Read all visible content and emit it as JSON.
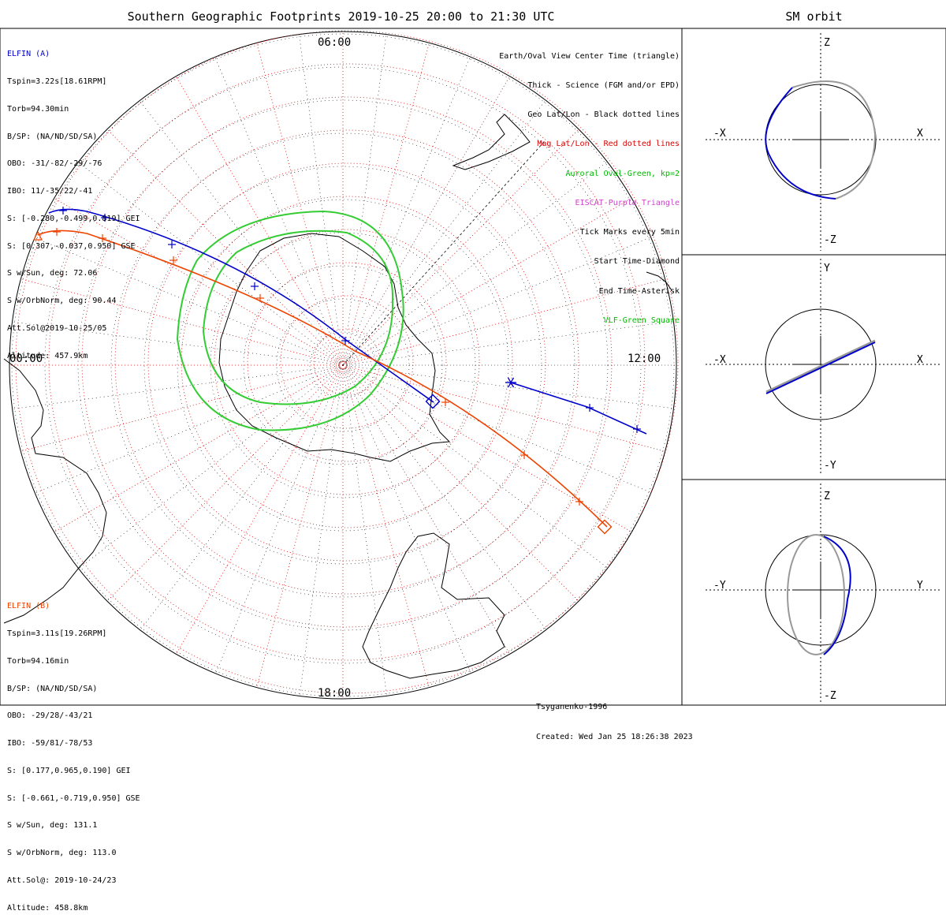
{
  "title": "Southern Geographic Footprints 2019-10-25 20:00 to 21:30 UTC",
  "side_title": "SM orbit",
  "elfin_a": {
    "header": "ELFIN (A)",
    "lines": [
      "Tspin=3.22s[18.61RPM]",
      "Torb=94.30min",
      "B/SP: (NA/ND/SD/SA)",
      "OBO: -31/-82/-29/-76",
      "IBO: 11/-35/22/-41",
      "S: [-0.280,-0.499,0.819] GEI",
      "S: [0.307,-0.037,0.950] GSE",
      "S w/Sun, deg: 72.06",
      "S w/OrbNorm, deg: 90.44",
      "Att.Sol@2019-10-25/05",
      "Altitude: 457.9km"
    ],
    "color": "#0000cc"
  },
  "elfin_b": {
    "header": "ELFIN (B)",
    "lines": [
      "Tspin=3.11s[19.26RPM]",
      "Torb=94.16min",
      "B/SP: (NA/ND/SD/SA)",
      "OBO: -29/28/-43/21",
      "IBO: -59/81/-78/53",
      "S: [0.177,0.965,0.190] GEI",
      "S: [-0.661,-0.719,0.950] GSE",
      "S w/Sun, deg: 131.1",
      "S w/OrbNorm, deg: 113.0",
      "Att.Sol@: 2019-10-24/23",
      "Altitude: 458.8km"
    ],
    "color": "#ee4400"
  },
  "legend": [
    {
      "text": "Earth/Oval View Center Time (triangle)",
      "color": "#000000"
    },
    {
      "text": "Thick - Science (FGM and/or EPD)",
      "color": "#000000"
    },
    {
      "text": "Geo Lat/Lon - Black dotted lines",
      "color": "#000000"
    },
    {
      "text": "Mag Lat/Lon - Red dotted lines",
      "color": "#dd0000"
    },
    {
      "text": "Auroral Oval-Green, kp=2",
      "color": "#00bb00"
    },
    {
      "text": "EISCAT-Purple Triangle",
      "color": "#cc44cc"
    },
    {
      "text": "Tick Marks every 5min",
      "color": "#000000"
    },
    {
      "text": "Start Time-Diamond",
      "color": "#000000"
    },
    {
      "text": "End Time-Asterisk",
      "color": "#000000"
    },
    {
      "text": "VLF-Green Square",
      "color": "#00bb00"
    }
  ],
  "map_labels": {
    "top": "06:00",
    "left": "00:00",
    "right": "12:00",
    "bottom": "18:00"
  },
  "footer": {
    "model": "Tsyganenko-1996",
    "created": "Created: Wed Jan 25 18:26:38 2023"
  },
  "panels": [
    {
      "top": "Z",
      "bottom": "-Z",
      "left": "-X",
      "right": "X"
    },
    {
      "top": "Y",
      "bottom": "-Y",
      "left": "-X",
      "right": "X"
    },
    {
      "top": "Z",
      "bottom": "-Z",
      "left": "-Y",
      "right": "Y"
    }
  ],
  "colors": {
    "elfin_a": "#0000cc",
    "elfin_b": "#ee4400",
    "oval": "#33cc33",
    "mag_grid": "#dd0000",
    "geo_grid": "#000000"
  }
}
